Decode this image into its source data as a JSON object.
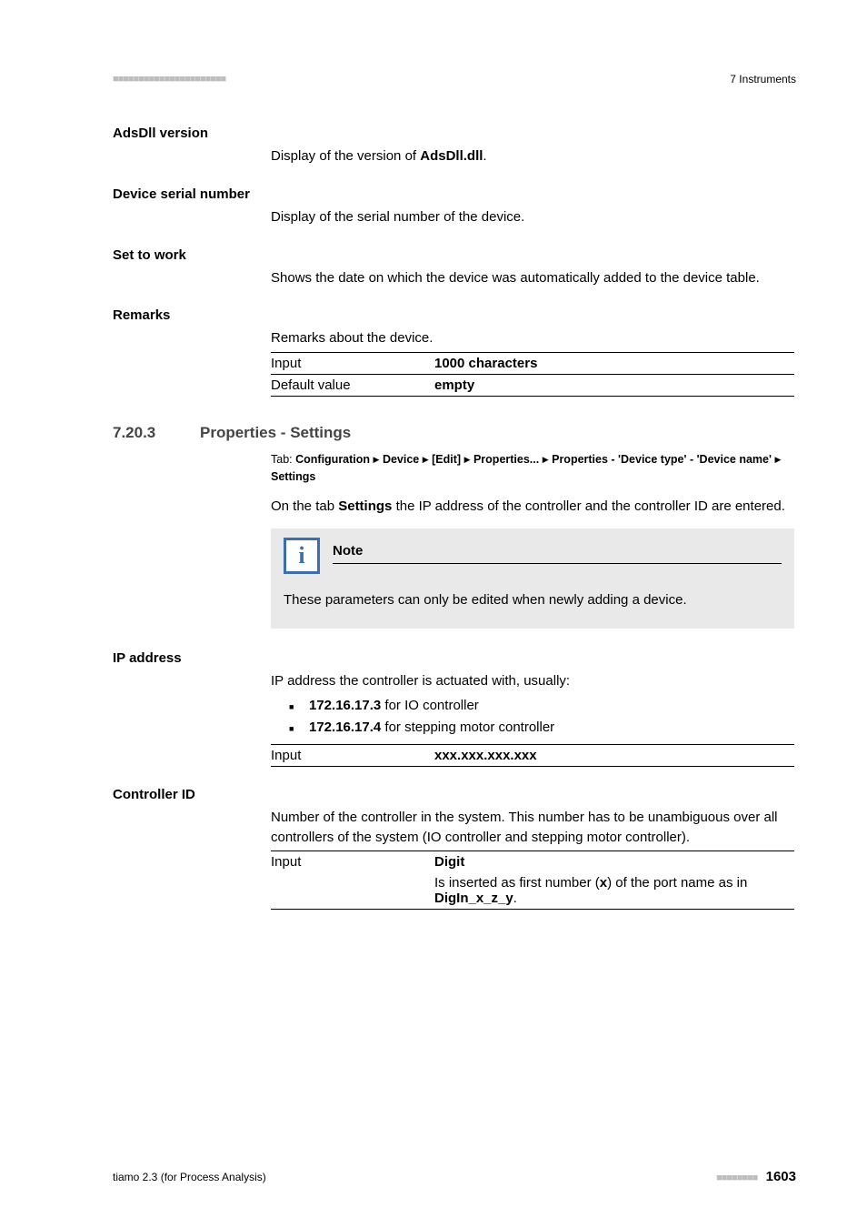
{
  "header": {
    "chapter": "7 Instruments"
  },
  "fields": {
    "adsdll": {
      "name": "AdsDll version",
      "desc_pre": "Display of the version of ",
      "desc_bold": "AdsDll.dll",
      "desc_post": "."
    },
    "serial": {
      "name": "Device serial number",
      "desc": "Display of the serial number of the device."
    },
    "settowork": {
      "name": "Set to work",
      "desc": "Shows the date on which the device was automatically added to the device table."
    },
    "remarks": {
      "name": "Remarks",
      "desc": "Remarks about the device.",
      "rows": {
        "input_key": "Input",
        "input_val": "1000 characters",
        "default_key": "Default value",
        "default_val": "empty"
      }
    }
  },
  "section": {
    "number": "7.20.3",
    "title": "Properties - Settings",
    "tab_prefix": "Tab: ",
    "tab_parts": {
      "p1": "Configuration",
      "p2": "Device",
      "p3": "[Edit]",
      "p4": "Properties...",
      "p5": "Properties - 'Device type' - 'Device name'",
      "p6": "Settings"
    },
    "intro_pre": "On the tab ",
    "intro_bold": "Settings",
    "intro_post": " the IP address of the controller and the controller ID are entered.",
    "note_label": "Note",
    "note_text": "These parameters can only be edited when newly adding a device."
  },
  "ip": {
    "name": "IP address",
    "desc": "IP address the controller is actuated with, usually:",
    "item1_bold": "172.16.17.3",
    "item1_rest": " for IO controller",
    "item2_bold": "172.16.17.4",
    "item2_rest": " for stepping motor controller",
    "input_key": "Input",
    "input_val": "xxx.xxx.xxx.xxx"
  },
  "controller": {
    "name": "Controller ID",
    "desc": "Number of the controller in the system. This number has to be unambiguous over all controllers of the system (IO controller and stepping motor controller).",
    "input_key": "Input",
    "digit": "Digit",
    "line2_pre": "Is inserted as first number (",
    "line2_x": "x",
    "line2_mid": ") of the port name as in ",
    "line2_bold": "DigIn_x_z_y",
    "line2_post": "."
  },
  "footer": {
    "left": "tiamo 2.3 (for Process Analysis)",
    "page": "1603"
  }
}
